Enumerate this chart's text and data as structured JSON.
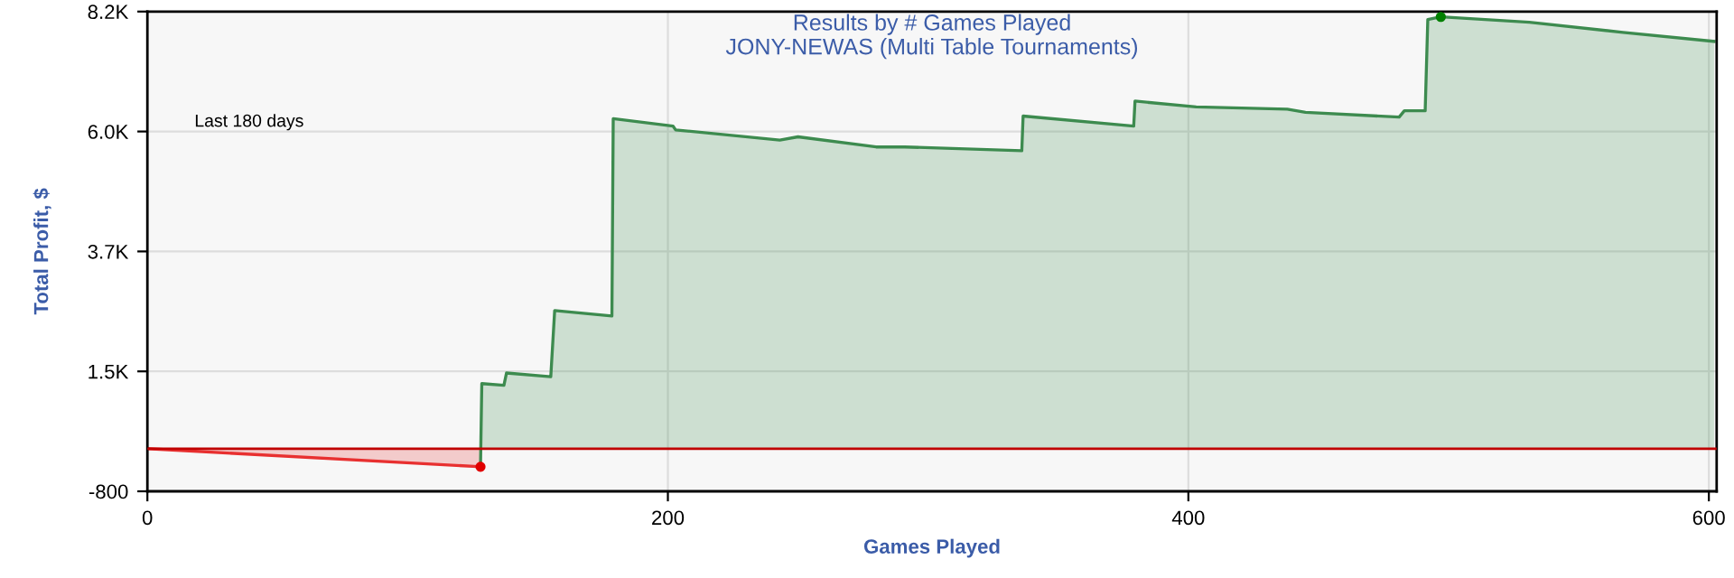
{
  "chart_data": {
    "type": "area",
    "title": "Results by # Games Played",
    "subtitle": "JONY-NEWAS (Multi Table Tournaments)",
    "xlabel": "Games Played",
    "ylabel": "Total Profit, $",
    "annotations": [
      "Last 180 days"
    ],
    "series": [
      {
        "color": "#e83030",
        "x": [
          0,
          128
        ],
        "values": [
          0,
          -340
        ]
      },
      {
        "color": "#3d8b4f",
        "x": [
          128,
          128.5,
          137,
          138,
          155,
          156.5,
          178.5,
          179,
          202,
          203,
          243,
          250,
          280,
          291,
          336,
          336.5,
          379,
          379.5,
          403,
          438,
          445,
          481,
          483,
          491,
          492,
          497,
          531,
          567,
          602
        ],
        "values": [
          -340,
          1220,
          1190,
          1420,
          1350,
          2590,
          2490,
          6190,
          6050,
          5980,
          5790,
          5850,
          5660,
          5660,
          5590,
          6240,
          6050,
          6520,
          6410,
          6370,
          6310,
          6220,
          6340,
          6340,
          8050,
          8100,
          8000,
          7810,
          7640
        ]
      },
      {
        "type": "scatter",
        "colors": [
          "#e00000",
          "#008000"
        ],
        "x": [
          128,
          497
        ],
        "values": [
          -340,
          8100
        ]
      }
    ],
    "xlim": [
      0,
      603
    ],
    "xticks": [
      0,
      200,
      400,
      600
    ],
    "ylim": [
      -800,
      8200
    ],
    "yticks": [
      -800,
      {
        "value": 1450,
        "label": "1.5K"
      },
      {
        "value": 3700,
        "label": "3.7K"
      },
      {
        "value": 5950,
        "label": "6.0K"
      },
      {
        "value": 8200,
        "label": "8.2K"
      }
    ],
    "ref_lines": [
      {
        "axis": "y",
        "value": 0,
        "color": "#c00000"
      }
    ],
    "grid": true,
    "legend": false
  }
}
